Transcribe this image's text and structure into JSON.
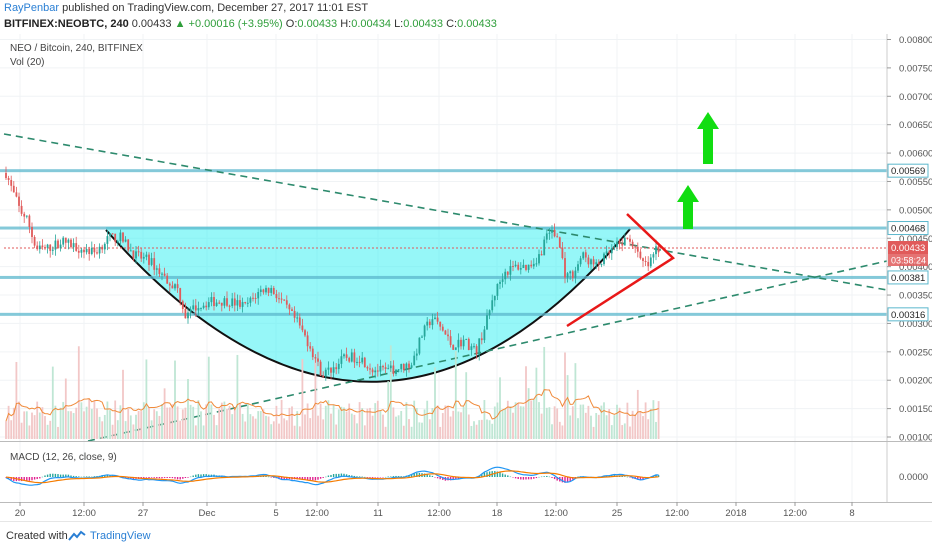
{
  "header": {
    "author": "RayPenbar",
    "published_text": "published on TradingView.com, December 27, 2017 11:01 EST",
    "ticker": "BITFINEX:NEOBTC, 240",
    "last": "0.00433",
    "change": "▲ +0.00016 (+3.95%)",
    "o_label": "O:",
    "o": "0.00433",
    "h_label": "H:",
    "h": "0.00434",
    "l_label": "L:",
    "l": "0.00433",
    "c_label": "C:",
    "c": "0.00433"
  },
  "footer": {
    "created_with": "Created with",
    "brand": "TradingView"
  },
  "colors": {
    "up": "#26a69a",
    "down": "#e05a5a",
    "cup_fill": "#3ff0f2",
    "level": "#5bb7cc",
    "trend": "#2d8a6d",
    "triangle": "#e81818",
    "arrow": "#11dd11",
    "ema": "#f08a3a",
    "macd": "#2196f3",
    "signal": "#f57c00"
  },
  "chart_data": {
    "type": "candlestick",
    "title": "NEO / Bitcoin, 240, BITFINEX",
    "volume_label": "Vol (20)",
    "x_ticks": [
      "20",
      "12:00",
      "27",
      "Dec",
      "5",
      "12:00",
      "11",
      "12:00",
      "18",
      "12:00",
      "25",
      "12:00",
      "2018",
      "12:00",
      "8"
    ],
    "price_axis": {
      "ylim": [
        0.00085,
        0.0081
      ],
      "ticks": [
        "0.00800",
        "0.00750",
        "0.00700",
        "0.00650",
        "0.00600",
        "0.00550",
        "0.00500",
        "0.00450",
        "0.00400",
        "0.00350",
        "0.00300",
        "0.00250",
        "0.00200",
        "0.00150",
        "0.00100"
      ]
    },
    "levels": [
      {
        "label": "0.00569",
        "value": 0.00569
      },
      {
        "label": "0.00468",
        "value": 0.00468
      },
      {
        "label": "0.00381",
        "value": 0.00381
      },
      {
        "label": "0.00316",
        "value": 0.00316
      }
    ],
    "current_price": {
      "label": "0.00433",
      "value": 0.00433,
      "countdown": "03:58:24"
    },
    "overlapped_labels": [
      "0.00450",
      "0.00400"
    ],
    "macd": {
      "label": "MACD (12, 26, close, 9)",
      "axis_label": "0.0000"
    }
  }
}
